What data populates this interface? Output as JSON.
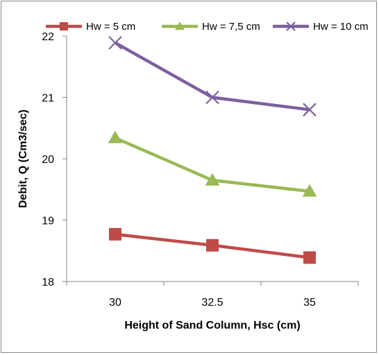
{
  "chart_data": {
    "type": "line",
    "categories": [
      "30",
      "32.5",
      "35"
    ],
    "series": [
      {
        "name": "Hw = 5 cm",
        "values": [
          18.77,
          18.59,
          18.39
        ],
        "color": "#be4b48",
        "marker": "square"
      },
      {
        "name": "Hw = 7,5 cm",
        "values": [
          20.34,
          19.65,
          19.47
        ],
        "color": "#98b954",
        "marker": "triangle"
      },
      {
        "name": "Hw = 10 cm",
        "values": [
          21.89,
          21.0,
          20.8
        ],
        "color": "#7d60a0",
        "marker": "x"
      }
    ],
    "xlabel": "Height of Sand Column, Hsc (cm)",
    "ylabel": "Debit, Q  (Cm3/sec)",
    "ylim": [
      18,
      22
    ],
    "yticks": [
      "18",
      "19",
      "20",
      "21",
      "22"
    ],
    "grid": false,
    "legend": "top"
  }
}
